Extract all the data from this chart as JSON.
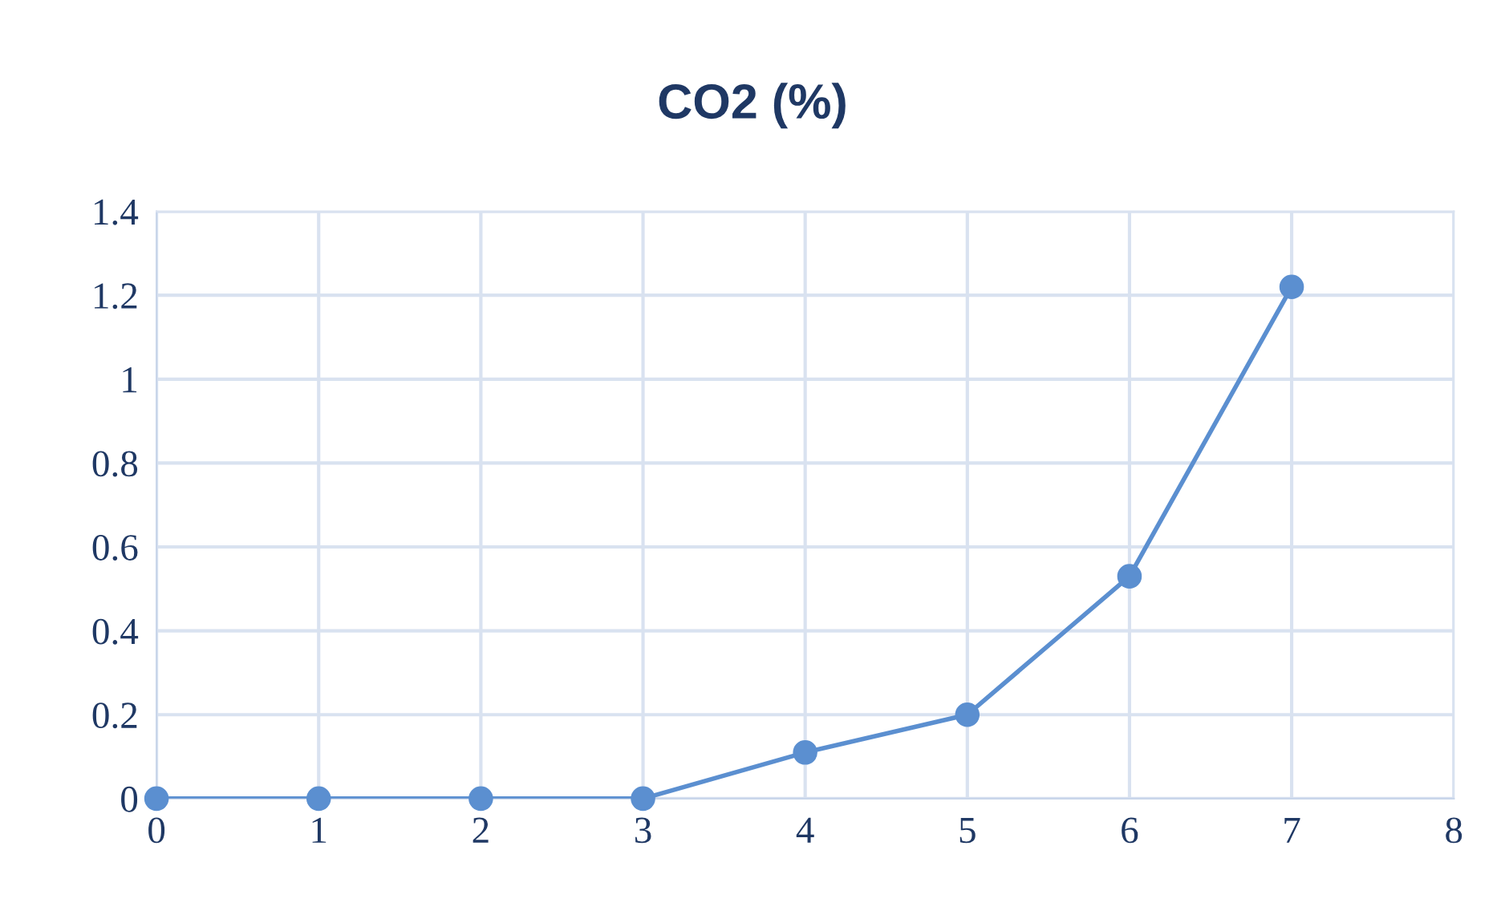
{
  "chart_data": {
    "type": "line",
    "title": "CO2 (%)",
    "x": [
      0,
      1,
      2,
      3,
      4,
      5,
      6,
      7
    ],
    "series": [
      {
        "color": "#5b8fd0",
        "values": [
          0,
          0,
          0,
          0,
          0.11,
          0.2,
          0.53,
          1.22
        ]
      }
    ],
    "xlim": [
      0,
      8
    ],
    "xticks": [
      0,
      1,
      2,
      3,
      4,
      5,
      6,
      7,
      8
    ],
    "ylim": [
      0,
      1.4
    ],
    "yticks": [
      0,
      {
        "value": 0.2,
        "label": "0.2"
      },
      {
        "value": 0.4,
        "label": "0.4"
      },
      {
        "value": 0.6,
        "label": "0.6"
      },
      {
        "value": 0.8,
        "label": "0.8"
      },
      1,
      {
        "value": 1.2,
        "label": "1.2"
      },
      {
        "value": 1.4,
        "label": "1.4"
      }
    ],
    "grid": true,
    "marker": "circle",
    "line_style": "solid",
    "legend": false
  }
}
